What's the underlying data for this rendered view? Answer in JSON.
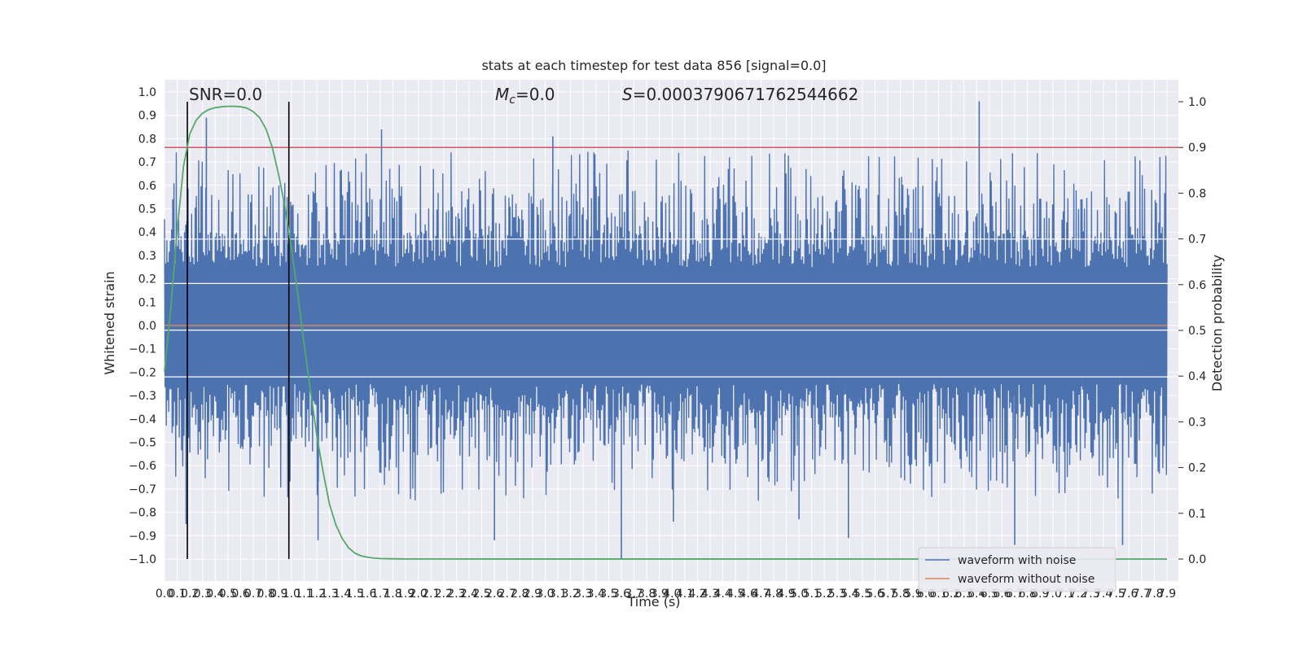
{
  "chart_data": {
    "type": "line",
    "title": "stats at each timestep for test data 856 [signal=0.0]",
    "xlabel": "Time (s)",
    "ylabel": "Whitened strain",
    "ylabel_right": "Detection probability",
    "xlim": [
      0.0,
      7.9
    ],
    "ylim": [
      -1.0,
      1.0
    ],
    "ylim_right": [
      0.0,
      1.0
    ],
    "x_ticks": [
      "0.0",
      "0.1",
      "0.2",
      "0.3",
      "0.4",
      "0.5",
      "0.6",
      "0.7",
      "0.8",
      "0.9",
      "1.0",
      "1.1",
      "1.2",
      "1.3",
      "1.4",
      "1.5",
      "1.6",
      "1.7",
      "1.8",
      "1.9",
      "2.0",
      "2.1",
      "2.2",
      "2.3",
      "2.4",
      "2.5",
      "2.6",
      "2.7",
      "2.8",
      "2.9",
      "3.0",
      "3.1",
      "3.2",
      "3.3",
      "3.4",
      "3.5",
      "3.6",
      "3.7",
      "3.8",
      "3.9",
      "4.0",
      "4.1",
      "4.2",
      "4.3",
      "4.4",
      "4.5",
      "4.6",
      "4.7",
      "4.8",
      "4.9",
      "5.0",
      "5.1",
      "5.2",
      "5.3",
      "5.4",
      "5.5",
      "5.6",
      "5.7",
      "5.8",
      "5.9",
      "6.0",
      "6.1",
      "6.2",
      "6.3",
      "6.4",
      "6.5",
      "6.6",
      "6.7",
      "6.8",
      "6.9",
      "7.0",
      "7.1",
      "7.2",
      "7.3",
      "7.4",
      "7.5",
      "7.6",
      "7.7",
      "7.8",
      "7.9"
    ],
    "y_ticks": [
      "1.0",
      "0.9",
      "0.8",
      "0.7",
      "0.6",
      "0.5",
      "0.4",
      "0.3",
      "0.2",
      "0.1",
      "0.0",
      "−0.1",
      "−0.2",
      "−0.3",
      "−0.4",
      "−0.5",
      "−0.6",
      "−0.7",
      "−0.8",
      "−0.9",
      "−1.0"
    ],
    "y_ticks_right": [
      "1.0",
      "0.9",
      "0.8",
      "0.7",
      "0.6",
      "0.5",
      "0.4",
      "0.3",
      "0.2",
      "0.1",
      "0.0"
    ],
    "grid": true,
    "legend_position": "lower-right",
    "annotations": {
      "snr": "SNR=0.0",
      "mc_symbol": "M",
      "mc_sub": "c",
      "mc_value": "=0.0",
      "s_symbol": "S",
      "s_value": "=0.0003790671762544662"
    },
    "series": [
      {
        "name": "waveform with noise",
        "color": "#4c72b0",
        "description_range": [
          -1.0,
          0.96
        ],
        "spikes": [
          {
            "x": 0.33,
            "y": 0.89
          },
          {
            "x": 0.17,
            "y": -0.85
          },
          {
            "x": 1.21,
            "y": -0.92
          },
          {
            "x": 1.71,
            "y": 0.84
          },
          {
            "x": 2.6,
            "y": -0.92
          },
          {
            "x": 3.06,
            "y": 0.81
          },
          {
            "x": 3.6,
            "y": -1.0
          },
          {
            "x": 4.01,
            "y": -0.84
          },
          {
            "x": 5.0,
            "y": -0.83
          },
          {
            "x": 5.39,
            "y": -0.91
          },
          {
            "x": 6.42,
            "y": 0.96
          },
          {
            "x": 6.7,
            "y": -0.94
          },
          {
            "x": 7.55,
            "y": -0.94
          }
        ]
      },
      {
        "name": "waveform without noise",
        "color": "#dd8452",
        "x": [
          0.0,
          7.9
        ],
        "y": [
          0.0,
          0.0
        ]
      },
      {
        "name": "detection probability",
        "color": "#55a868",
        "axis": "right",
        "x": [
          0.0,
          0.05,
          0.1,
          0.15,
          0.2,
          0.25,
          0.3,
          0.35,
          0.4,
          0.45,
          0.5,
          0.55,
          0.6,
          0.65,
          0.7,
          0.75,
          0.8,
          0.85,
          0.9,
          0.95,
          1.0,
          1.05,
          1.1,
          1.15,
          1.2,
          1.25,
          1.3,
          1.35,
          1.4,
          1.45,
          1.5,
          1.55,
          1.6,
          1.65,
          1.7,
          1.8,
          1.9,
          2.0,
          7.9
        ],
        "y": [
          0.41,
          0.55,
          0.72,
          0.86,
          0.93,
          0.96,
          0.975,
          0.983,
          0.987,
          0.989,
          0.99,
          0.99,
          0.989,
          0.986,
          0.978,
          0.965,
          0.94,
          0.9,
          0.84,
          0.77,
          0.68,
          0.58,
          0.47,
          0.37,
          0.27,
          0.19,
          0.12,
          0.075,
          0.045,
          0.025,
          0.013,
          0.007,
          0.004,
          0.002,
          0.001,
          0.0005,
          0.0002,
          0.0001,
          0.0
        ]
      }
    ],
    "hlines_right": [
      {
        "y": 0.9,
        "color": "#c44e52"
      }
    ],
    "vlines": [
      {
        "x": 0.18,
        "color": "#000000"
      },
      {
        "x": 0.98,
        "color": "#000000"
      }
    ],
    "bands_left": [
      0.37,
      0.18,
      -0.02,
      -0.22
    ]
  }
}
